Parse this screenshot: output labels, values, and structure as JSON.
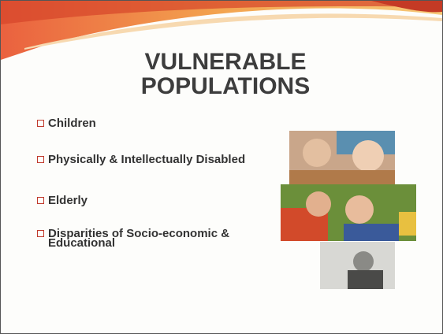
{
  "slide": {
    "title": [
      "VULNERABLE",
      "POPULATIONS"
    ],
    "bullets": [
      "Children",
      "Physically & Intellectually Disabled",
      "Elderly",
      "Disparities of Socio-economic & Educational"
    ]
  }
}
